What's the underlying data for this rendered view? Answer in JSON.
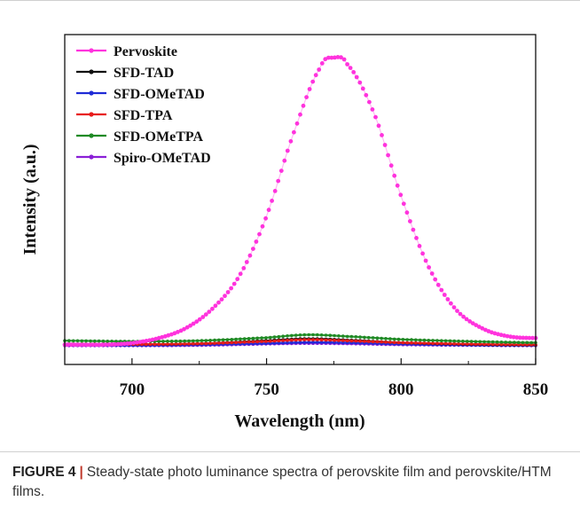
{
  "chart_data": {
    "type": "line",
    "xlabel": "Wavelength (nm)",
    "ylabel": "Intensity (a.u.)",
    "xlim": [
      675,
      850
    ],
    "ylim": [
      0,
      1.0
    ],
    "x_ticks": [
      "700",
      "750",
      "800",
      "850"
    ],
    "x_tick_values": [
      700,
      750,
      800,
      850
    ],
    "grid": false,
    "legend_position": "top-left",
    "series": [
      {
        "name": "Pervoskite",
        "color": "#ff33dd",
        "x": [
          675,
          690,
          700,
          710,
          720,
          730,
          740,
          750,
          760,
          770,
          775,
          780,
          790,
          800,
          810,
          820,
          830,
          840,
          850
        ],
        "y": [
          0.06,
          0.06,
          0.065,
          0.08,
          0.11,
          0.17,
          0.27,
          0.45,
          0.7,
          0.9,
          0.93,
          0.91,
          0.76,
          0.51,
          0.3,
          0.17,
          0.11,
          0.085,
          0.08
        ]
      },
      {
        "name": "SFD-TAD",
        "color": "#111111",
        "x": [
          675,
          700,
          725,
          750,
          765,
          780,
          800,
          825,
          850
        ],
        "y": [
          0.062,
          0.061,
          0.063,
          0.072,
          0.078,
          0.074,
          0.066,
          0.061,
          0.059
        ]
      },
      {
        "name": "SFD-OMeTAD",
        "color": "#1f2bd6",
        "x": [
          675,
          700,
          725,
          750,
          765,
          780,
          800,
          825,
          850
        ],
        "y": [
          0.059,
          0.058,
          0.06,
          0.064,
          0.067,
          0.066,
          0.062,
          0.059,
          0.058
        ]
      },
      {
        "name": "SFD-TPA",
        "color": "#e81b1b",
        "x": [
          675,
          700,
          725,
          750,
          765,
          780,
          800,
          825,
          850
        ],
        "y": [
          0.061,
          0.061,
          0.063,
          0.07,
          0.075,
          0.072,
          0.066,
          0.062,
          0.06
        ]
      },
      {
        "name": "SFD-OMeTPA",
        "color": "#1e8a24",
        "x": [
          675,
          700,
          725,
          750,
          765,
          780,
          800,
          825,
          850
        ],
        "y": [
          0.072,
          0.07,
          0.072,
          0.081,
          0.09,
          0.085,
          0.076,
          0.07,
          0.066
        ]
      },
      {
        "name": "Spiro-OMeTAD",
        "color": "#8a1fd6",
        "x": [
          675,
          700,
          725,
          750,
          765,
          780,
          800,
          825,
          850
        ],
        "y": [
          0.057,
          0.057,
          0.058,
          0.062,
          0.064,
          0.063,
          0.06,
          0.058,
          0.057
        ]
      }
    ]
  },
  "caption": {
    "label": "FIGURE 4",
    "separator": "|",
    "text": "Steady-state photo luminance spectra of perovskite film and perovskite/HTM films."
  }
}
